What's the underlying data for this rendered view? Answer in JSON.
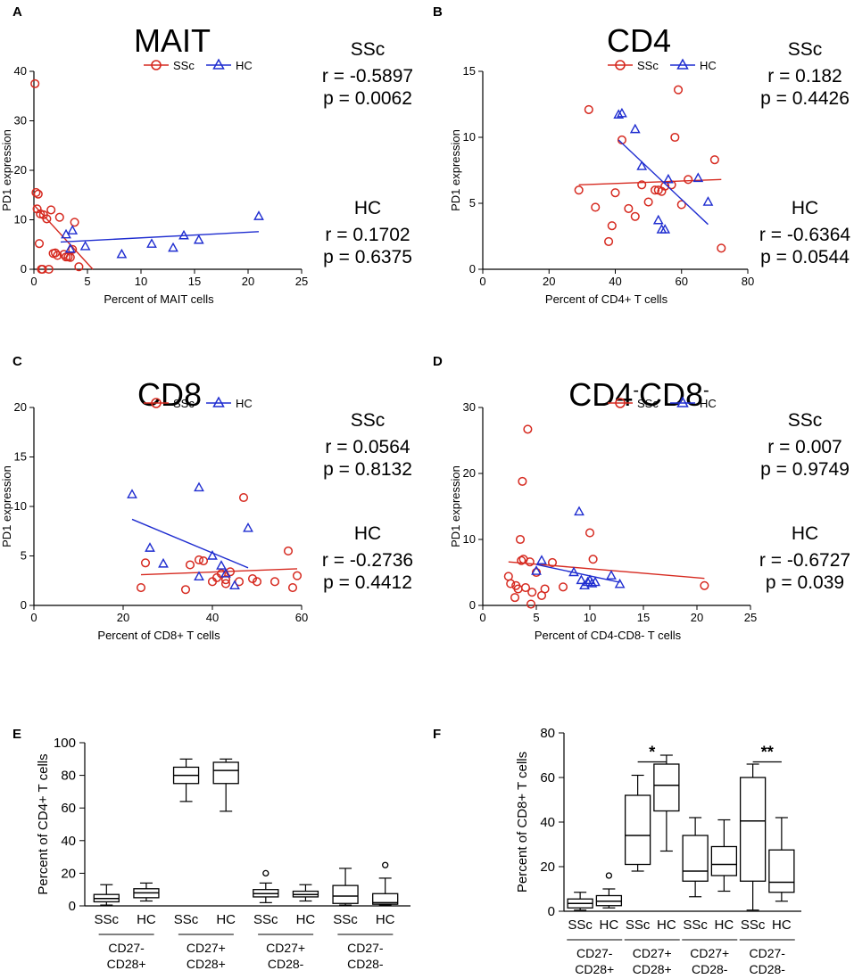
{
  "scatter_panels": [
    {
      "id": "A",
      "label": "A",
      "title": "MAIT",
      "sup": [
        "",
        ""
      ],
      "xlabel": "Percent of MAIT cells",
      "ylabel": "PD1 expression",
      "xlim": [
        0,
        25
      ],
      "ylim": [
        0,
        40
      ],
      "xticks": [
        "0",
        "5",
        "10",
        "15",
        "20",
        "25"
      ],
      "yticks": [
        "0",
        "10",
        "20",
        "30",
        "40"
      ],
      "legend": [
        "SSc",
        "HC"
      ],
      "stats": [
        {
          "group": "SSc",
          "r": "r = -0.5897",
          "p": "p = 0.0062"
        },
        {
          "group": "HC",
          "r": "r = 0.1702",
          "p": "p = 0.6375"
        }
      ]
    },
    {
      "id": "B",
      "label": "B",
      "title": "CD4",
      "sup": [
        "",
        ""
      ],
      "xlabel": "Percent of CD4+ T cells",
      "ylabel": "PD1 expression",
      "xlim": [
        0,
        80
      ],
      "ylim": [
        0,
        15
      ],
      "xticks": [
        "0",
        "20",
        "40",
        "60",
        "80"
      ],
      "yticks": [
        "0",
        "5",
        "10",
        "15"
      ],
      "legend": [
        "SSc",
        "HC"
      ],
      "stats": [
        {
          "group": "SSc",
          "r": "r = 0.182",
          "p": "p = 0.4426"
        },
        {
          "group": "HC",
          "r": "r = -0.6364",
          "p": "p = 0.0544"
        }
      ]
    },
    {
      "id": "C",
      "label": "C",
      "title": "CD8",
      "sup": [
        "",
        ""
      ],
      "xlabel": "Percent of CD8+ T cells",
      "ylabel": "PD1 expression",
      "xlim": [
        0,
        60
      ],
      "ylim": [
        0,
        20
      ],
      "xticks": [
        "0",
        "20",
        "40",
        "60"
      ],
      "yticks": [
        "0",
        "5",
        "10",
        "15",
        "20"
      ],
      "legend": [
        "SSc",
        "HC"
      ],
      "stats": [
        {
          "group": "SSc",
          "r": "r = 0.0564",
          "p": "p = 0.8132"
        },
        {
          "group": "HC",
          "r": "r = -0.2736",
          "p": "p = 0.4412"
        }
      ]
    },
    {
      "id": "D",
      "label": "D",
      "title": "CD4",
      "title2": "CD8",
      "sup": [
        "-",
        "-"
      ],
      "xlabel": "Percent of CD4-CD8- T cells",
      "ylabel": "PD1 expression",
      "xlim": [
        0,
        25
      ],
      "ylim": [
        0,
        30
      ],
      "xticks": [
        "0",
        "5",
        "10",
        "15",
        "20",
        "25"
      ],
      "yticks": [
        "0",
        "10",
        "20",
        "30"
      ],
      "legend": [
        "SSc",
        "HC"
      ],
      "stats": [
        {
          "group": "SSc",
          "r": "r = 0.007",
          "p": "p = 0.9749"
        },
        {
          "group": "HC",
          "r": "r = -0.6727",
          "p": "p = 0.039"
        }
      ]
    }
  ],
  "box_panels": [
    {
      "id": "E",
      "label": "E",
      "ylabel": "Percent of CD4+ T cells",
      "ylim": [
        0,
        100
      ],
      "yticks": [
        "0",
        "20",
        "40",
        "60",
        "80",
        "100"
      ],
      "categories": [
        "SSc",
        "HC",
        "SSc",
        "HC",
        "SSc",
        "HC",
        "SSc",
        "HC"
      ],
      "groups": [
        [
          "CD27-",
          "CD28+"
        ],
        [
          "CD27+",
          "CD28+"
        ],
        [
          "CD27+",
          "CD28-"
        ],
        [
          "CD27-",
          "CD28-"
        ]
      ],
      "significance": []
    },
    {
      "id": "F",
      "label": "F",
      "ylabel": "Percent of CD8+ T cells",
      "ylim": [
        0,
        80
      ],
      "yticks": [
        "0",
        "20",
        "40",
        "60",
        "80"
      ],
      "categories": [
        "SSc",
        "HC",
        "SSc",
        "HC",
        "SSc",
        "HC",
        "SSc",
        "HC"
      ],
      "groups": [
        [
          "CD27-",
          "CD28+"
        ],
        [
          "CD27+",
          "CD28+"
        ],
        [
          "CD27+",
          "CD28-"
        ],
        [
          "CD27-",
          "CD28-"
        ]
      ],
      "significance": [
        {
          "from": 2,
          "to": 3,
          "label": "*",
          "y": 67
        },
        {
          "from": 6,
          "to": 7,
          "label": "**",
          "y": 67
        }
      ]
    }
  ],
  "chart_data": [
    {
      "type": "scatter",
      "title": "MAIT",
      "xlabel": "Percent of MAIT cells",
      "ylabel": "PD1 expression",
      "xlim": [
        0,
        25
      ],
      "ylim": [
        0,
        40
      ],
      "series": [
        {
          "name": "SSc",
          "color": "#d62a20",
          "marker": "circle",
          "x": [
            0.1,
            0.2,
            0.4,
            0.3,
            0.6,
            0.9,
            1.2,
            1.6,
            2.0,
            2.4,
            2.8,
            3.0,
            3.2,
            3.4,
            3.8,
            0.5,
            0.7,
            1.4,
            1.8,
            2.2,
            3.6,
            4.2,
            0.8
          ],
          "y": [
            37.5,
            15.5,
            15.2,
            12.2,
            11.2,
            11.0,
            10.2,
            12.0,
            3.3,
            10.5,
            3.0,
            2.5,
            2.5,
            2.4,
            9.5,
            5.2,
            0.0,
            0.0,
            3.2,
            2.8,
            4.0,
            0.5,
            0.0
          ],
          "fit": {
            "x": [
              0,
              5.5
            ],
            "y": [
              13,
              0
            ]
          }
        },
        {
          "name": "HC",
          "color": "#1f2dd0",
          "marker": "triangle",
          "x": [
            3.6,
            3.4,
            4.8,
            8.2,
            11.0,
            13.0,
            14.0,
            15.4,
            21.0,
            3.0
          ],
          "y": [
            7.8,
            4.1,
            4.6,
            3.0,
            5.1,
            4.3,
            6.8,
            5.9,
            10.7,
            7.0
          ],
          "fit": {
            "x": [
              2.5,
              21
            ],
            "y": [
              5.5,
              7.6
            ]
          }
        }
      ]
    },
    {
      "type": "scatter",
      "title": "CD4",
      "xlabel": "Percent of CD4+ T cells",
      "ylabel": "PD1 expression",
      "xlim": [
        0,
        80
      ],
      "ylim": [
        0,
        15
      ],
      "series": [
        {
          "name": "SSc",
          "color": "#d62a20",
          "marker": "circle",
          "x": [
            29,
            32,
            34,
            38,
            39,
            40,
            42,
            44,
            46,
            48,
            50,
            52,
            53,
            54,
            55,
            57,
            58,
            59,
            60,
            62,
            70,
            72
          ],
          "y": [
            6.0,
            12.1,
            4.7,
            2.1,
            3.3,
            5.8,
            9.8,
            4.6,
            4.0,
            6.4,
            5.1,
            6.0,
            6.0,
            5.9,
            6.3,
            6.4,
            10.0,
            13.6,
            4.9,
            6.8,
            8.3,
            1.6
          ],
          "fit": {
            "x": [
              29,
              72
            ],
            "y": [
              6.4,
              6.8
            ]
          }
        },
        {
          "name": "HC",
          "color": "#1f2dd0",
          "marker": "triangle",
          "x": [
            41,
            42,
            46,
            48,
            53,
            54,
            55,
            56,
            65,
            68
          ],
          "y": [
            11.7,
            11.8,
            10.6,
            7.8,
            3.7,
            3.0,
            3.0,
            6.8,
            6.9,
            5.1
          ],
          "fit": {
            "x": [
              41,
              68
            ],
            "y": [
              9.8,
              3.4
            ]
          }
        }
      ]
    },
    {
      "type": "scatter",
      "title": "CD8",
      "xlabel": "Percent of CD8+ T cells",
      "ylabel": "PD1 expression",
      "xlim": [
        0,
        60
      ],
      "ylim": [
        0,
        20
      ],
      "series": [
        {
          "name": "SSc",
          "color": "#d62a20",
          "marker": "circle",
          "x": [
            24,
            25,
            34,
            35,
            37,
            38,
            40,
            41,
            42,
            43,
            43,
            44,
            46,
            47,
            49,
            50,
            54,
            57,
            58,
            59
          ],
          "y": [
            1.8,
            4.3,
            1.6,
            4.1,
            4.6,
            4.5,
            2.4,
            2.8,
            3.2,
            2.6,
            2.2,
            3.4,
            2.4,
            10.9,
            2.7,
            2.4,
            2.4,
            5.5,
            1.8,
            3.0
          ],
          "fit": {
            "x": [
              24,
              59
            ],
            "y": [
              3.1,
              3.7
            ]
          }
        },
        {
          "name": "HC",
          "color": "#1f2dd0",
          "marker": "triangle",
          "x": [
            22,
            26,
            29,
            37,
            37,
            40,
            42,
            43,
            45,
            48
          ],
          "y": [
            11.2,
            5.8,
            4.2,
            11.9,
            2.9,
            5.0,
            4.0,
            3.2,
            2.0,
            7.8
          ],
          "fit": {
            "x": [
              22,
              48
            ],
            "y": [
              8.7,
              3.8
            ]
          }
        }
      ]
    },
    {
      "type": "scatter",
      "title": "CD4-CD8-",
      "xlabel": "Percent of CD4-CD8- T cells",
      "ylabel": "PD1 expression",
      "xlim": [
        0,
        25
      ],
      "ylim": [
        0,
        30
      ],
      "series": [
        {
          "name": "SSc",
          "color": "#d62a20",
          "marker": "circle",
          "x": [
            2.4,
            2.6,
            3.0,
            3.3,
            3.5,
            3.7,
            3.8,
            4.0,
            4.2,
            4.4,
            4.5,
            4.6,
            5.0,
            5.5,
            5.8,
            6.5,
            7.5,
            10.0,
            10.3,
            20.7,
            3.1,
            3.6
          ],
          "y": [
            4.4,
            3.3,
            1.2,
            2.5,
            10.0,
            18.8,
            7.0,
            2.7,
            26.7,
            6.6,
            0.2,
            2.0,
            5.0,
            1.5,
            2.5,
            6.5,
            2.8,
            11.0,
            7.0,
            3.0,
            3.0,
            6.8
          ],
          "fit": {
            "x": [
              2.4,
              20.7
            ],
            "y": [
              6.6,
              4.1
            ]
          }
        },
        {
          "name": "HC",
          "color": "#1f2dd0",
          "marker": "triangle",
          "x": [
            5.0,
            5.5,
            8.5,
            9.0,
            9.2,
            9.5,
            9.8,
            10.0,
            10.2,
            10.5,
            12.0,
            12.8
          ],
          "y": [
            5.2,
            6.8,
            5.0,
            14.2,
            3.8,
            3.0,
            3.5,
            3.8,
            3.3,
            3.5,
            4.5,
            3.2
          ],
          "fit": {
            "x": [
              5,
              12.8
            ],
            "y": [
              6.2,
              3.5
            ]
          }
        }
      ]
    },
    {
      "type": "box",
      "title": "",
      "ylabel": "Percent of CD4+ T cells",
      "ylim": [
        0,
        100
      ],
      "categories": [
        "SSc",
        "HC",
        "SSc",
        "HC",
        "SSc",
        "HC",
        "SSc",
        "HC"
      ],
      "groups": [
        "CD27- CD28+",
        "CD27+ CD28+",
        "CD27+ CD28-",
        "CD27- CD28-"
      ],
      "boxes": [
        {
          "min": 0.5,
          "q1": 2.5,
          "median": 4.5,
          "q3": 7,
          "max": 13,
          "outliers": []
        },
        {
          "min": 3,
          "q1": 5,
          "median": 8,
          "q3": 10.5,
          "max": 14,
          "outliers": []
        },
        {
          "min": 64,
          "q1": 75,
          "median": 80,
          "q3": 85,
          "max": 90,
          "outliers": []
        },
        {
          "min": 58,
          "q1": 75,
          "median": 83,
          "q3": 88,
          "max": 90,
          "outliers": []
        },
        {
          "min": 2,
          "q1": 5.5,
          "median": 7.5,
          "q3": 10,
          "max": 14,
          "outliers": [
            20
          ]
        },
        {
          "min": 3,
          "q1": 5.5,
          "median": 7,
          "q3": 9,
          "max": 13,
          "outliers": []
        },
        {
          "min": 0.5,
          "q1": 1.5,
          "median": 6,
          "q3": 12.5,
          "max": 23,
          "outliers": []
        },
        {
          "min": 0.5,
          "q1": 1,
          "median": 2,
          "q3": 7.5,
          "max": 17,
          "outliers": [
            25
          ]
        }
      ]
    },
    {
      "type": "box",
      "title": "",
      "ylabel": "Percent of CD8+ T cells",
      "ylim": [
        0,
        80
      ],
      "categories": [
        "SSc",
        "HC",
        "SSc",
        "HC",
        "SSc",
        "HC",
        "SSc",
        "HC"
      ],
      "groups": [
        "CD27- CD28+",
        "CD27+ CD28+",
        "CD27+ CD28-",
        "CD27- CD28-"
      ],
      "boxes": [
        {
          "min": 0.5,
          "q1": 1.5,
          "median": 3.5,
          "q3": 5.5,
          "max": 8.5,
          "outliers": []
        },
        {
          "min": 1.5,
          "q1": 2.5,
          "median": 4.5,
          "q3": 7,
          "max": 10,
          "outliers": [
            16
          ]
        },
        {
          "min": 18,
          "q1": 21,
          "median": 34,
          "q3": 52,
          "max": 61,
          "outliers": []
        },
        {
          "min": 27,
          "q1": 45,
          "median": 56.5,
          "q3": 66,
          "max": 70,
          "outliers": []
        },
        {
          "min": 6.5,
          "q1": 13.5,
          "median": 18,
          "q3": 34,
          "max": 42,
          "outliers": []
        },
        {
          "min": 9,
          "q1": 16,
          "median": 21,
          "q3": 29,
          "max": 41,
          "outliers": []
        },
        {
          "min": 0.5,
          "q1": 13.5,
          "median": 40.5,
          "q3": 60,
          "max": 66,
          "outliers": []
        },
        {
          "min": 4.5,
          "q1": 8.5,
          "median": 13,
          "q3": 27.5,
          "max": 42,
          "outliers": []
        }
      ]
    }
  ]
}
